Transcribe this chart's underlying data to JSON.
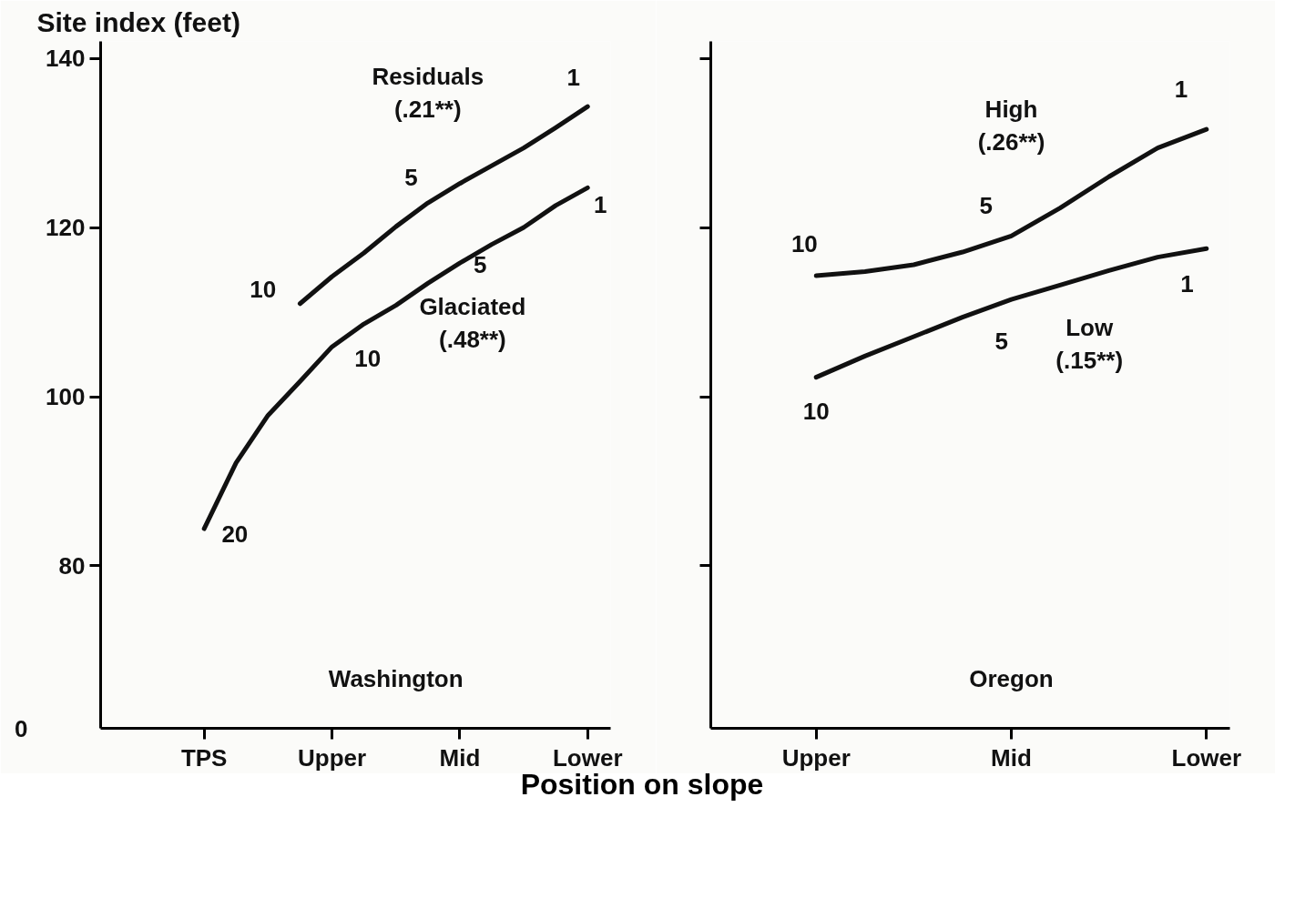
{
  "chart_data": [
    {
      "type": "line",
      "title": "Washington",
      "ylabel": "Site index (feet)",
      "xlabel": "Position on slope",
      "categories": [
        "TPS",
        null,
        null,
        null,
        "Upper",
        null,
        null,
        null,
        "Mid",
        null,
        null,
        null,
        "Lower"
      ],
      "ylim": [
        60.8,
        142
      ],
      "yticks": [
        80,
        100,
        120,
        140
      ],
      "grid": false,
      "marker": "none",
      "line_style": "solid",
      "series": [
        {
          "name": "Residuals (.21**)",
          "color": "#111111",
          "values": [
            null,
            null,
            null,
            111.0,
            114.2,
            117.0,
            120.1,
            122.9,
            125.2,
            127.3,
            129.4,
            131.8,
            134.3
          ]
        },
        {
          "name": "Glaciated (.48**)",
          "color": "#111111",
          "values": [
            84.4,
            92.2,
            97.8,
            101.8,
            105.9,
            108.6,
            110.8,
            113.4,
            115.8,
            118.0,
            120.0,
            122.6,
            124.7
          ]
        }
      ],
      "annotations": [
        "0",
        "1",
        "5",
        "10",
        "1",
        "5",
        "10",
        "20"
      ]
    },
    {
      "type": "line",
      "title": "Oregon",
      "categories": [
        "Upper",
        null,
        null,
        null,
        "Mid",
        null,
        null,
        null,
        "Lower"
      ],
      "ylim": [
        60.8,
        142
      ],
      "yticks": [
        80,
        100,
        120,
        140
      ],
      "tick_labels": "x",
      "grid": false,
      "marker": "none",
      "line_style": "solid",
      "series": [
        {
          "name": "High (.26**)",
          "color": "#111111",
          "values": [
            114.3,
            114.8,
            115.6,
            117.1,
            119.0,
            122.3,
            126.0,
            129.4,
            131.6
          ]
        },
        {
          "name": "Low (.15**)",
          "color": "#111111",
          "values": [
            102.3,
            104.8,
            107.1,
            109.4,
            111.5,
            113.2,
            114.9,
            116.5,
            117.5
          ]
        }
      ],
      "annotations": [
        "10",
        "5",
        "1",
        "1",
        "5",
        "10"
      ]
    }
  ]
}
